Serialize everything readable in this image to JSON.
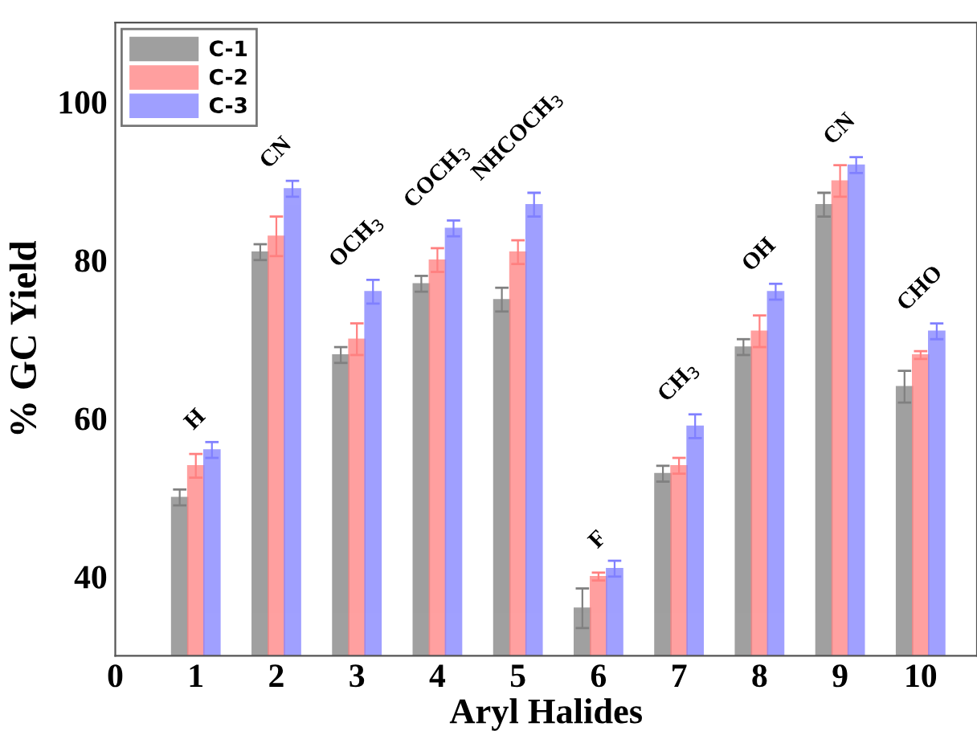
{
  "chart_data": {
    "type": "bar",
    "xlabel": "Aryl Halides",
    "ylabel": "% GC Yield",
    "x": [
      1,
      2,
      3,
      4,
      5,
      6,
      7,
      8,
      9,
      10
    ],
    "series": [
      {
        "name": "C-1",
        "color": "#808080",
        "values": [
          50,
          81,
          68,
          77,
          75,
          36,
          53,
          69,
          87,
          64
        ],
        "errors": [
          1,
          1,
          1,
          1,
          1.5,
          2.5,
          1,
          1,
          1.5,
          2
        ]
      },
      {
        "name": "C-2",
        "color": "#ff8080",
        "values": [
          54,
          83,
          70,
          80,
          81,
          40,
          54,
          71,
          90,
          68
        ],
        "errors": [
          1.5,
          2.5,
          2,
          1.5,
          1.5,
          0.5,
          1,
          2,
          2,
          0.5
        ]
      },
      {
        "name": "C-3",
        "color": "#8080ff",
        "values": [
          56,
          89,
          76,
          84,
          87,
          41,
          59,
          76,
          92,
          71
        ],
        "errors": [
          1,
          1,
          1.5,
          1,
          1.5,
          1,
          1.5,
          1,
          1,
          1
        ]
      }
    ],
    "annotations": [
      "H",
      "CN",
      "OCH$_{3}$",
      "COCH$_{3}$",
      "NHCOCH$_{3}$",
      "F",
      "CH$_{3}$",
      "OH",
      "CN",
      "CHO"
    ],
    "xlim": [
      0,
      10.7
    ],
    "xticks": [
      0,
      1,
      2,
      3,
      4,
      5,
      6,
      7,
      8,
      9,
      10
    ],
    "ylim": [
      30,
      110
    ],
    "yticks": [
      40,
      60,
      80,
      100
    ],
    "grid": false,
    "legend": "top left"
  }
}
